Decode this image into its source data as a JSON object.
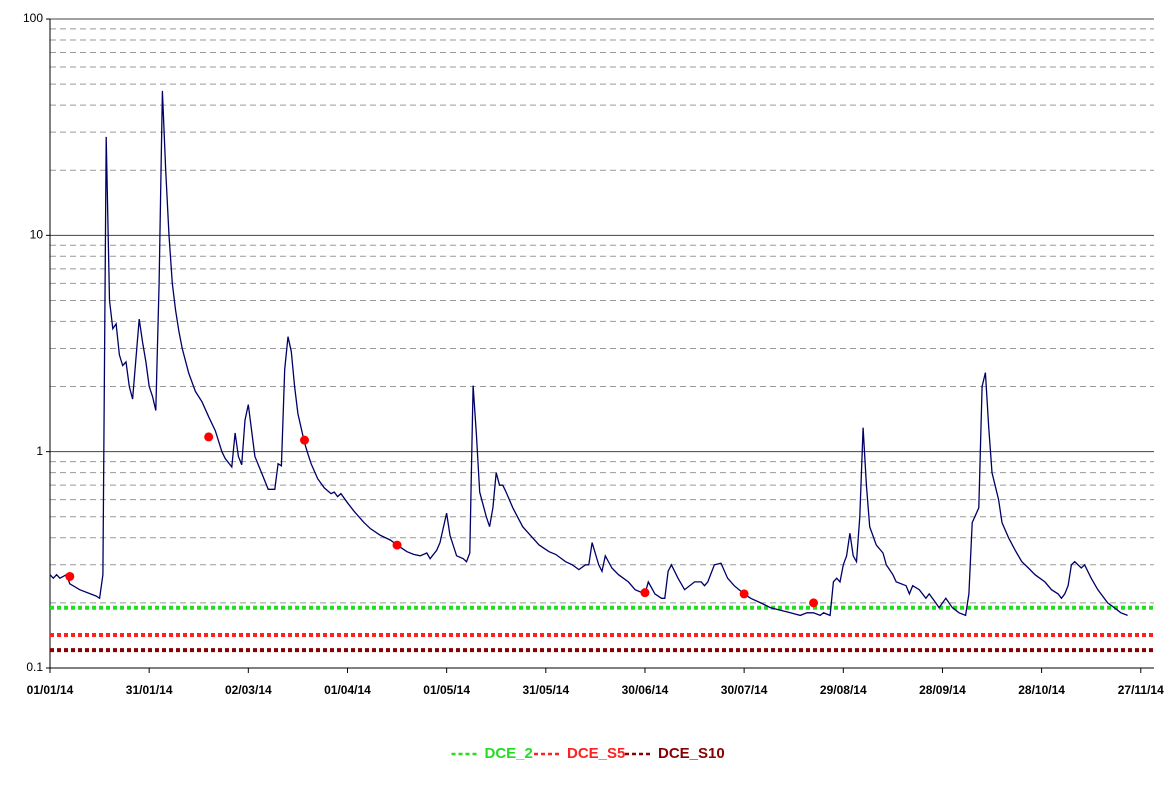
{
  "chart_data": {
    "type": "line",
    "log_y": true,
    "grid": true,
    "ylim": [
      0.1,
      100
    ],
    "yticks": [
      0.1,
      1,
      10,
      100
    ],
    "minor_yticks": [
      0.2,
      0.3,
      0.4,
      0.5,
      0.6,
      0.7,
      0.8,
      0.9,
      2,
      3,
      4,
      5,
      6,
      7,
      8,
      9,
      20,
      30,
      40,
      50,
      60,
      70,
      80,
      90
    ],
    "xlim": [
      "01/01/14",
      "01/12/14"
    ],
    "xticks": [
      "01/01/14",
      "31/01/14",
      "02/03/14",
      "01/04/14",
      "01/05/14",
      "31/05/14",
      "30/06/14",
      "30/07/14",
      "29/08/14",
      "28/09/14",
      "28/10/14",
      "27/11/14"
    ],
    "series": [
      {
        "style": "line",
        "color": "#000066",
        "x": [
          "01/01/14",
          "02/01/14",
          "03/01/14",
          "04/01/14",
          "06/01/14",
          "07/01/14",
          "10/01/14",
          "15/01/14",
          "16/01/14",
          "17/01/14",
          "18/01/14",
          "19/01/14",
          "20/01/14",
          "21/01/14",
          "22/01/14",
          "23/01/14",
          "24/01/14",
          "25/01/14",
          "26/01/14",
          "28/01/14",
          "29/01/14",
          "30/01/14",
          "31/01/14",
          "01/02/14",
          "02/02/14",
          "03/02/14",
          "04/02/14",
          "05/02/14",
          "06/02/14",
          "07/02/14",
          "08/02/14",
          "09/02/14",
          "10/02/14",
          "12/02/14",
          "14/02/14",
          "16/02/14",
          "18/02/14",
          "20/02/14",
          "22/02/14",
          "23/02/14",
          "25/02/14",
          "26/02/14",
          "27/02/14",
          "28/02/14",
          "01/03/14",
          "02/03/14",
          "04/03/14",
          "06/03/14",
          "08/03/14",
          "10/03/14",
          "11/03/14",
          "12/03/14",
          "13/03/14",
          "14/03/14",
          "15/03/14",
          "16/03/14",
          "17/03/14",
          "19/03/14",
          "20/03/14",
          "21/03/14",
          "23/03/14",
          "25/03/14",
          "27/03/14",
          "28/03/14",
          "29/03/14",
          "30/03/14",
          "01/04/14",
          "03/04/14",
          "06/04/14",
          "08/04/14",
          "11/04/14",
          "14/04/14",
          "16/04/14",
          "19/04/14",
          "21/04/14",
          "23/04/14",
          "25/04/14",
          "26/04/14",
          "28/04/14",
          "29/04/14",
          "01/05/14",
          "02/05/14",
          "04/05/14",
          "06/05/14",
          "07/05/14",
          "08/05/14",
          "09/05/14",
          "10/05/14",
          "11/05/14",
          "13/05/14",
          "14/05/14",
          "15/05/14",
          "16/05/14",
          "17/05/14",
          "18/05/14",
          "19/05/14",
          "21/05/14",
          "24/05/14",
          "27/05/14",
          "29/05/14",
          "01/06/14",
          "03/06/14",
          "06/06/14",
          "08/06/14",
          "10/06/14",
          "12/06/14",
          "13/06/14",
          "14/06/14",
          "16/06/14",
          "17/06/14",
          "18/06/14",
          "20/06/14",
          "22/06/14",
          "25/06/14",
          "27/06/14",
          "30/06/14",
          "01/07/14",
          "03/07/14",
          "05/07/14",
          "06/07/14",
          "07/07/14",
          "08/07/14",
          "10/07/14",
          "12/07/14",
          "15/07/14",
          "17/07/14",
          "18/07/14",
          "19/07/14",
          "21/07/14",
          "23/07/14",
          "25/07/14",
          "27/07/14",
          "30/07/14",
          "01/08/14",
          "04/08/14",
          "07/08/14",
          "10/08/14",
          "13/08/14",
          "16/08/14",
          "18/08/14",
          "20/08/14",
          "22/08/14",
          "23/08/14",
          "25/08/14",
          "26/08/14",
          "27/08/14",
          "28/08/14",
          "29/08/14",
          "30/08/14",
          "31/08/14",
          "01/09/14",
          "02/09/14",
          "03/09/14",
          "04/09/14",
          "05/09/14",
          "06/09/14",
          "08/09/14",
          "10/09/14",
          "11/09/14",
          "13/09/14",
          "14/09/14",
          "17/09/14",
          "18/09/14",
          "19/09/14",
          "21/09/14",
          "23/09/14",
          "24/09/14",
          "26/09/14",
          "27/09/14",
          "29/09/14",
          "01/10/14",
          "03/10/14",
          "05/10/14",
          "06/10/14",
          "07/10/14",
          "09/10/14",
          "10/10/14",
          "11/10/14",
          "12/10/14",
          "13/10/14",
          "15/10/14",
          "16/10/14",
          "18/10/14",
          "20/10/14",
          "22/10/14",
          "24/10/14",
          "26/10/14",
          "29/10/14",
          "31/10/14",
          "02/11/14",
          "03/11/14",
          "04/11/14",
          "05/11/14",
          "06/11/14",
          "07/11/14",
          "09/11/14",
          "10/11/14",
          "12/11/14",
          "14/11/14",
          "17/11/14",
          "19/11/14",
          "21/11/14",
          "23/11/14"
        ],
        "values": [
          0.27,
          0.26,
          0.27,
          0.26,
          0.27,
          0.245,
          0.23,
          0.215,
          0.21,
          0.27,
          28.5,
          5.0,
          3.7,
          3.9,
          2.8,
          2.5,
          2.6,
          2.0,
          1.75,
          4.1,
          3.2,
          2.6,
          2.0,
          1.8,
          1.55,
          6.0,
          46.5,
          20,
          10,
          6.0,
          4.5,
          3.6,
          3.0,
          2.3,
          1.9,
          1.7,
          1.45,
          1.25,
          1.0,
          0.93,
          0.85,
          1.22,
          0.95,
          0.87,
          1.4,
          1.65,
          0.95,
          0.8,
          0.67,
          0.67,
          0.88,
          0.86,
          2.4,
          3.4,
          2.9,
          2.0,
          1.5,
          1.1,
          0.98,
          0.88,
          0.75,
          0.68,
          0.64,
          0.65,
          0.62,
          0.64,
          0.58,
          0.53,
          0.47,
          0.44,
          0.41,
          0.39,
          0.37,
          0.345,
          0.335,
          0.33,
          0.34,
          0.32,
          0.35,
          0.38,
          0.52,
          0.41,
          0.33,
          0.32,
          0.31,
          0.34,
          2.02,
          1.2,
          0.65,
          0.5,
          0.45,
          0.55,
          0.8,
          0.7,
          0.7,
          0.65,
          0.55,
          0.45,
          0.4,
          0.37,
          0.345,
          0.335,
          0.31,
          0.3,
          0.285,
          0.3,
          0.3,
          0.38,
          0.3,
          0.28,
          0.33,
          0.29,
          0.27,
          0.25,
          0.23,
          0.22,
          0.25,
          0.22,
          0.21,
          0.21,
          0.28,
          0.3,
          0.26,
          0.23,
          0.25,
          0.25,
          0.24,
          0.25,
          0.3,
          0.305,
          0.26,
          0.24,
          0.22,
          0.21,
          0.2,
          0.19,
          0.185,
          0.18,
          0.175,
          0.18,
          0.18,
          0.175,
          0.18,
          0.175,
          0.25,
          0.26,
          0.25,
          0.3,
          0.33,
          0.42,
          0.33,
          0.31,
          0.5,
          1.29,
          0.7,
          0.45,
          0.37,
          0.34,
          0.3,
          0.27,
          0.25,
          0.24,
          0.22,
          0.24,
          0.23,
          0.21,
          0.22,
          0.2,
          0.19,
          0.21,
          0.19,
          0.18,
          0.175,
          0.22,
          0.47,
          0.55,
          2.0,
          2.32,
          1.3,
          0.8,
          0.6,
          0.47,
          0.4,
          0.35,
          0.31,
          0.29,
          0.27,
          0.25,
          0.23,
          0.22,
          0.21,
          0.22,
          0.24,
          0.3,
          0.31,
          0.29,
          0.3,
          0.26,
          0.23,
          0.2,
          0.19,
          0.18,
          0.175
        ]
      },
      {
        "style": "points",
        "color": "#ff0000",
        "x": [
          "07/01/14",
          "18/02/14",
          "19/03/14",
          "16/04/14",
          "30/06/14",
          "30/07/14",
          "20/08/14"
        ],
        "values": [
          0.265,
          1.17,
          1.13,
          0.37,
          0.223,
          0.22,
          0.2
        ]
      }
    ],
    "thresholds": [
      {
        "name": "DCE_2",
        "color": "#22dd22",
        "value": 0.19
      },
      {
        "name": "DCE_S5",
        "color": "#ff2020",
        "value": 0.142
      },
      {
        "name": "DCE_S10",
        "color": "#880000",
        "value": 0.121
      }
    ]
  }
}
